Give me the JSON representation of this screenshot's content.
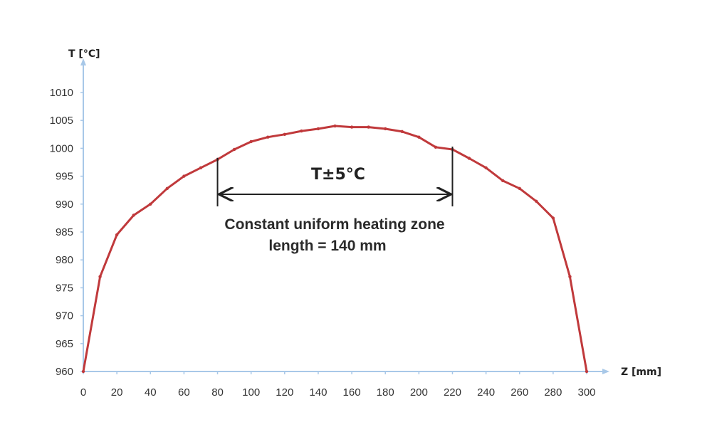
{
  "chart_data": {
    "type": "line",
    "title": "",
    "xlabel": "Z [mm]",
    "ylabel": "T [°C]",
    "xlim": [
      0,
      300
    ],
    "ylim": [
      960,
      1010
    ],
    "x_ticks": [
      "0",
      "20",
      "40",
      "60",
      "80",
      "100",
      "120",
      "140",
      "160",
      "180",
      "200",
      "220",
      "240",
      "260",
      "280",
      "300"
    ],
    "y_ticks": [
      "960",
      "965",
      "970",
      "975",
      "980",
      "985",
      "990",
      "995",
      "1000",
      "1005",
      "1010"
    ],
    "grid": false,
    "legend": "none",
    "colors": {
      "line": "#c0393b",
      "axis": "#a8c8e8",
      "arrow": "#222222"
    },
    "series": [
      {
        "x": [
          0,
          10,
          20,
          30,
          40,
          50,
          60,
          70,
          80,
          90,
          100,
          110,
          120,
          130,
          140,
          150,
          160,
          170,
          180,
          190,
          200,
          210,
          220,
          230,
          240,
          250,
          260,
          270,
          280,
          290,
          300
        ],
        "y": [
          960,
          977,
          984.5,
          988,
          990,
          992.8,
          995,
          996.5,
          998,
          999.8,
          1001.2,
          1002,
          1002.5,
          1003.1,
          1003.5,
          1004,
          1003.8,
          1003.8,
          1003.5,
          1003,
          1002,
          1000.2,
          999.8,
          998.2,
          996.5,
          994.2,
          992.8,
          990.5,
          987.5,
          977,
          960
        ]
      }
    ],
    "annotations": {
      "tolerance": "T±5°C",
      "zone_line1": "Constant uniform heating zone",
      "zone_line2": "length  = 140 mm",
      "zone_start": 80,
      "zone_end": 220
    }
  }
}
